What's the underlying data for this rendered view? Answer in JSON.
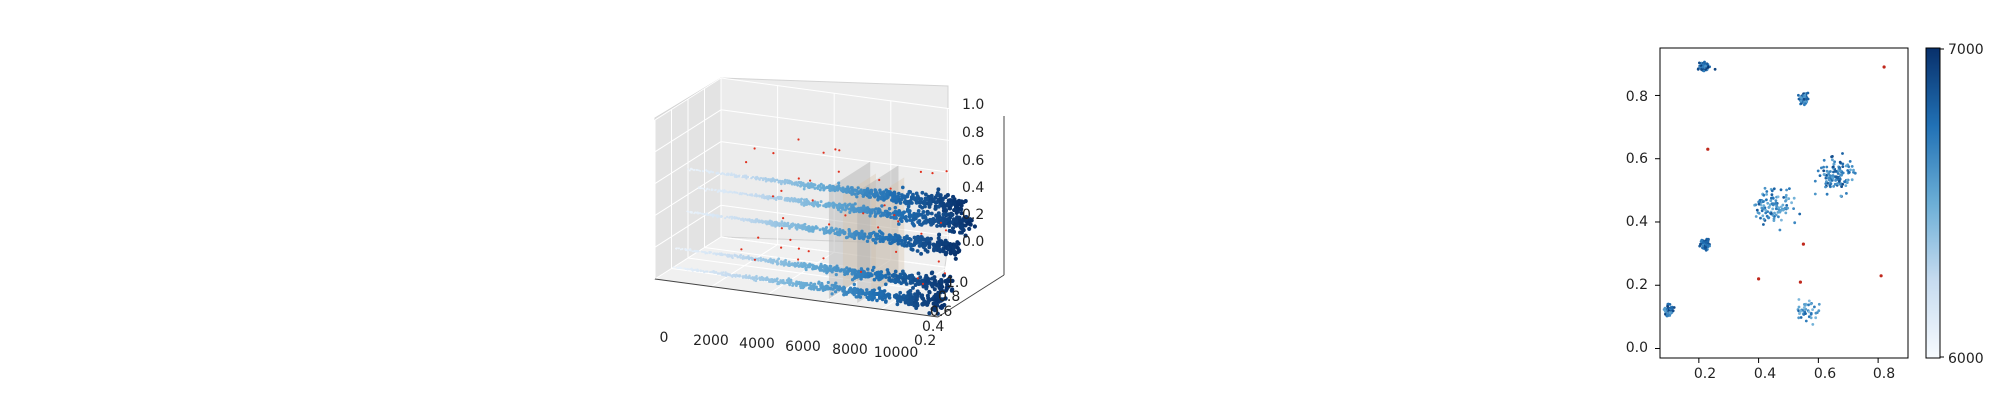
{
  "chart_data": [
    {
      "type": "scatter",
      "projection": "3d",
      "title": "",
      "xlabel": "",
      "ylabel": "",
      "zlabel": "",
      "xlim": [
        0,
        10000
      ],
      "ylim": [
        0.2,
        1.0
      ],
      "zlim": [
        0.0,
        1.0
      ],
      "xticks": [
        "0",
        "2000",
        "4000",
        "6000",
        "8000",
        "10000"
      ],
      "yticks": [
        "0.2",
        "0.4",
        "0.6",
        "0.8",
        "1.0"
      ],
      "zticks": [
        "0.0",
        "0.2",
        "0.4",
        "0.6",
        "0.8",
        "1.0"
      ],
      "grid": true,
      "colormap": "Blues",
      "outlier_color": "#e0301e",
      "bands": [
        {
          "y": 0.5,
          "z": 0.6,
          "x": [
            300,
            10000
          ]
        },
        {
          "y": 0.6,
          "z": 0.45,
          "x": [
            300,
            10000
          ]
        },
        {
          "y": 0.45,
          "z": 0.35,
          "x": [
            300,
            10000
          ]
        },
        {
          "y": 0.35,
          "z": 0.15,
          "x": [
            300,
            10000
          ]
        },
        {
          "y": 0.3,
          "z": 0.05,
          "x": [
            300,
            10000
          ]
        }
      ],
      "planes_x": [
        6000,
        7000
      ]
    },
    {
      "type": "scatter",
      "title": "",
      "xlabel": "",
      "ylabel": "",
      "xlim": [
        0.07,
        0.9
      ],
      "ylim": [
        -0.03,
        0.95
      ],
      "xticks": [
        "0.2",
        "0.4",
        "0.6",
        "0.8"
      ],
      "yticks": [
        "0.0",
        "0.2",
        "0.4",
        "0.6",
        "0.8"
      ],
      "colormap": "Blues",
      "colorbar": {
        "min_label": "6000",
        "max_label": "7000"
      },
      "clusters": [
        {
          "x": 0.22,
          "y": 0.89,
          "spread": 0.008,
          "n": 70,
          "shade": 0.8
        },
        {
          "x": 0.55,
          "y": 0.79,
          "spread": 0.008,
          "n": 60,
          "shade": 0.75
        },
        {
          "x": 0.22,
          "y": 0.33,
          "spread": 0.008,
          "n": 60,
          "shade": 0.8
        },
        {
          "x": 0.1,
          "y": 0.12,
          "spread": 0.008,
          "n": 50,
          "shade": 0.75
        },
        {
          "x": 0.66,
          "y": 0.55,
          "spread": 0.03,
          "n": 120,
          "shade": 0.7
        },
        {
          "x": 0.45,
          "y": 0.45,
          "spread": 0.03,
          "n": 110,
          "shade": 0.65
        },
        {
          "x": 0.56,
          "y": 0.12,
          "spread": 0.02,
          "n": 40,
          "shade": 0.6
        }
      ],
      "outliers": [
        {
          "x": 0.82,
          "y": 0.89
        },
        {
          "x": 0.23,
          "y": 0.63
        },
        {
          "x": 0.4,
          "y": 0.22
        },
        {
          "x": 0.55,
          "y": 0.33
        },
        {
          "x": 0.81,
          "y": 0.23
        },
        {
          "x": 0.54,
          "y": 0.21
        }
      ]
    }
  ]
}
